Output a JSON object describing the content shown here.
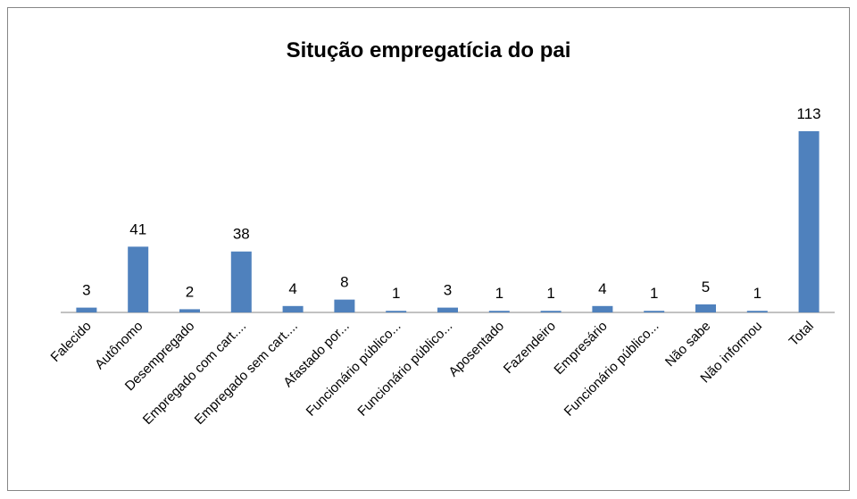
{
  "chart_data": {
    "type": "bar",
    "title": "Situção empregatícia do pai",
    "categories": [
      "Falecido",
      "Autônomo",
      "Desempregado",
      "Empregado com cart....",
      "Empregado sem cart....",
      "Afastado por...",
      "Funcionário público...",
      "Funcionário público...",
      "Aposentado",
      "Fazendeiro",
      "Empresário",
      "Funcionário público...",
      "Não sabe",
      "Não informou",
      "Total"
    ],
    "values": [
      3,
      41,
      2,
      38,
      4,
      8,
      1,
      3,
      1,
      1,
      4,
      1,
      5,
      1,
      113
    ],
    "color": "#4f81bd"
  }
}
